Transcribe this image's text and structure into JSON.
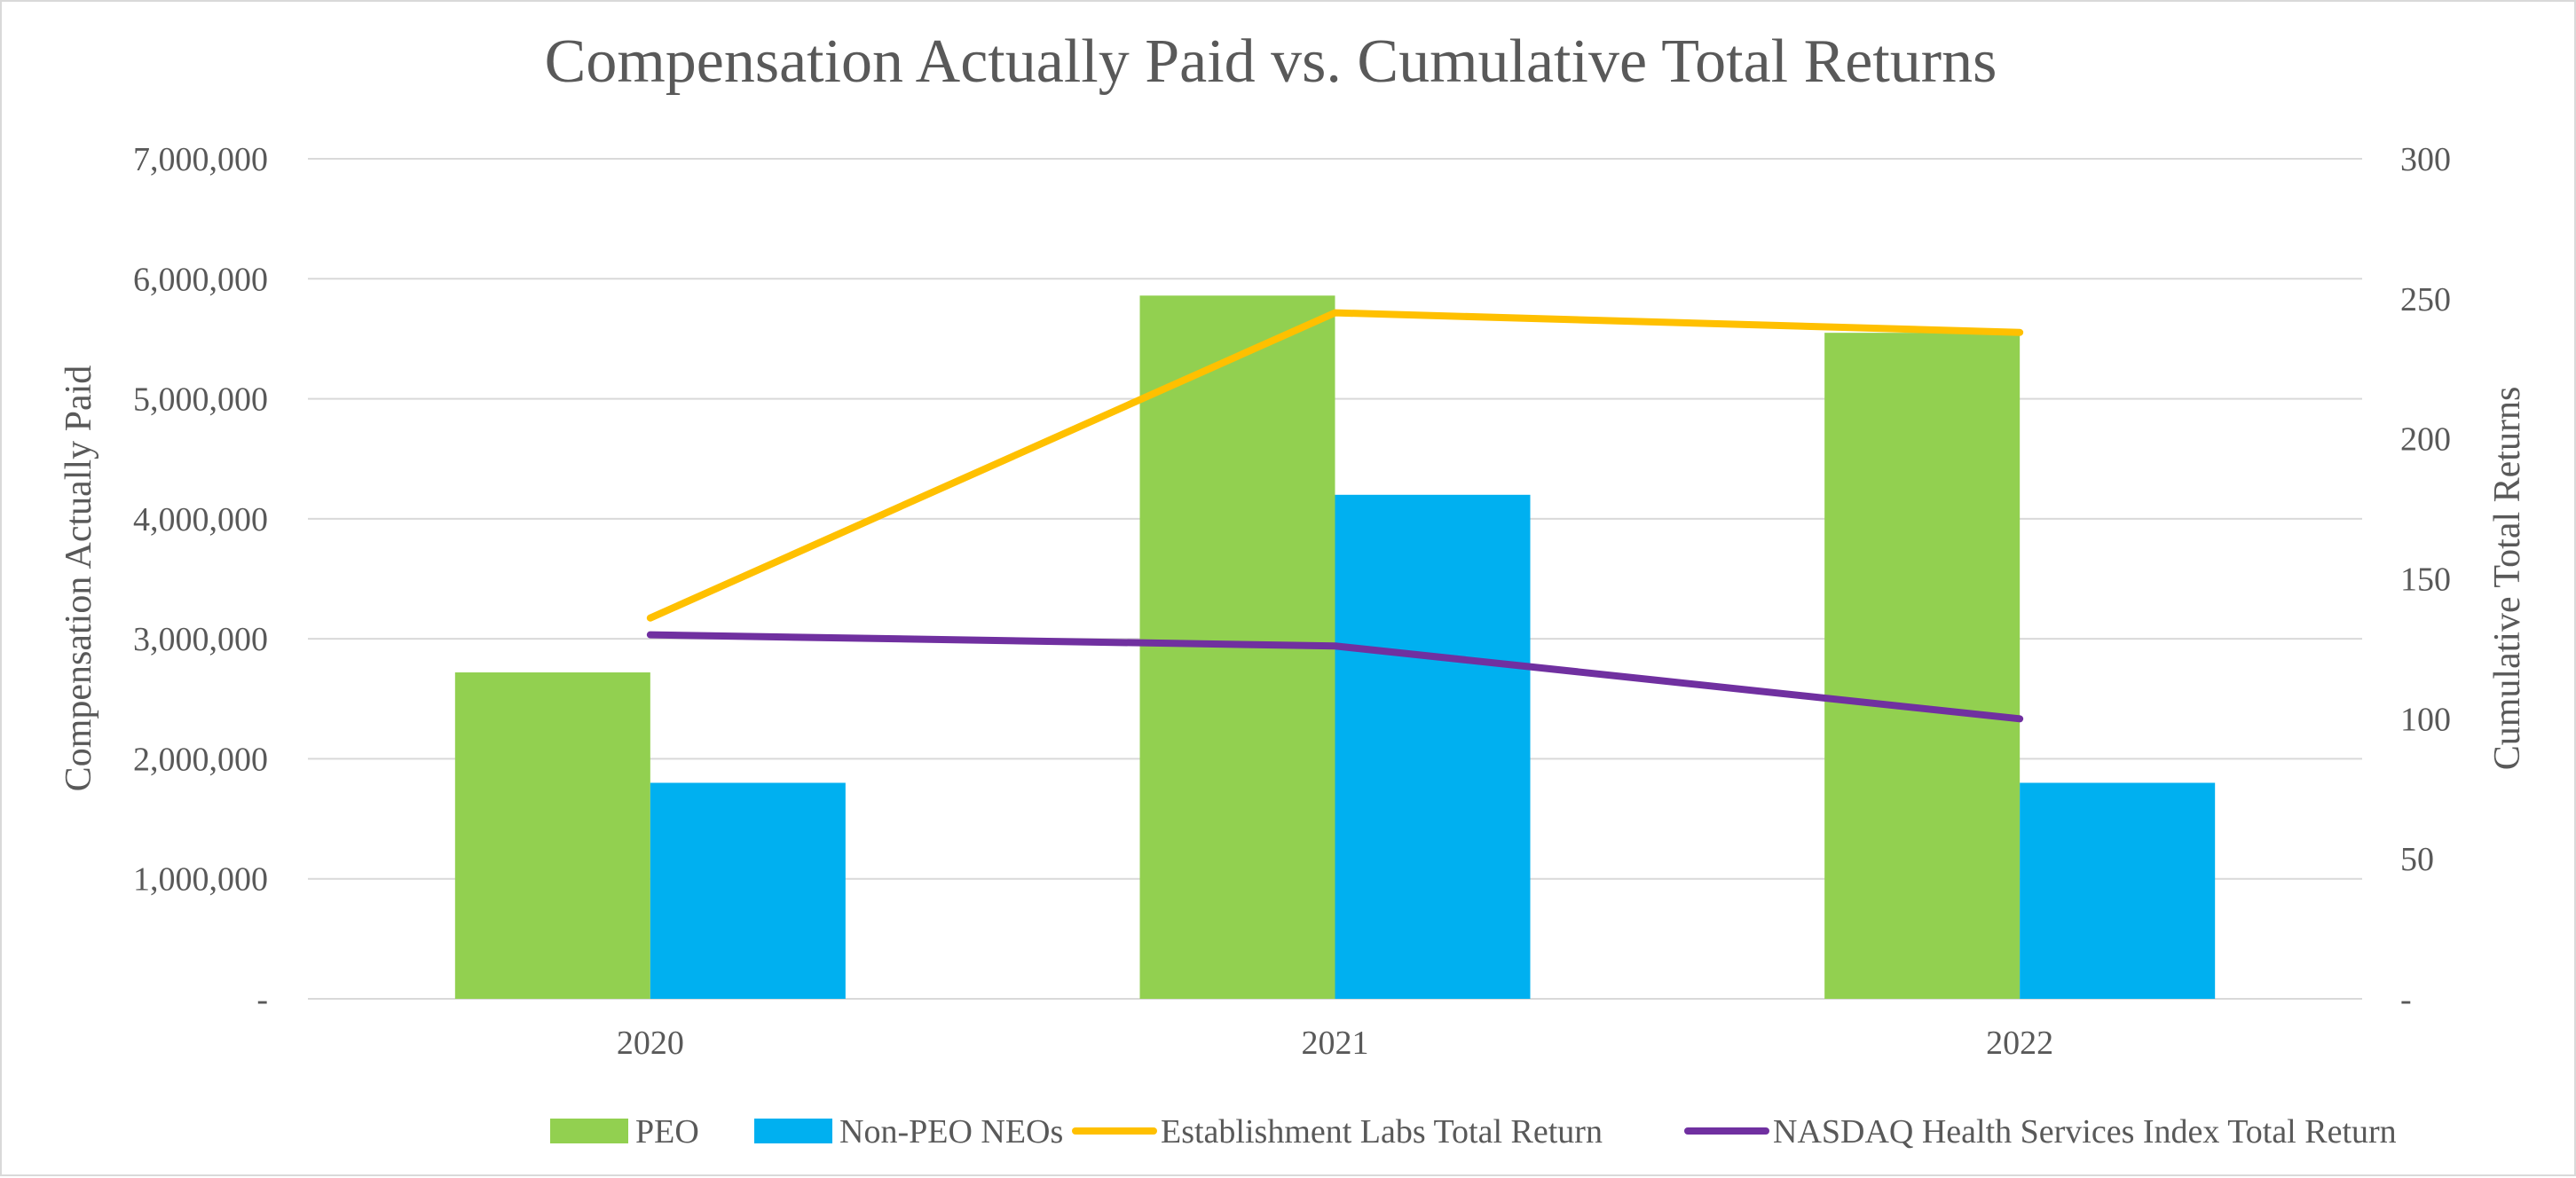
{
  "chart_data": {
    "type": "bar",
    "title": "Compensation Actually Paid vs. Cumulative Total Returns",
    "categories": [
      "2020",
      "2021",
      "2022"
    ],
    "ylabel": "Compensation Actually Paid",
    "y2label": "Cumulative Total Returns",
    "ylim": [
      0,
      7000000
    ],
    "y2lim": [
      0,
      300
    ],
    "y_ticks": [
      0,
      1000000,
      2000000,
      3000000,
      4000000,
      5000000,
      6000000,
      7000000
    ],
    "y_tick_labels": [
      "-",
      "1,000,000",
      "2,000,000",
      "3,000,000",
      "4,000,000",
      "5,000,000",
      "6,000,000",
      "7,000,000"
    ],
    "y2_ticks": [
      0,
      50,
      100,
      150,
      200,
      250,
      300
    ],
    "y2_tick_labels": [
      "-",
      "50",
      "100",
      "150",
      "200",
      "250",
      "300"
    ],
    "grid": true,
    "legend_position": "bottom",
    "series": [
      {
        "name": "PEO",
        "kind": "bar",
        "axis": "left",
        "color": "#92d050",
        "values": [
          2720000,
          5860000,
          5550000
        ]
      },
      {
        "name": "Non-PEO NEOs",
        "kind": "bar",
        "axis": "left",
        "color": "#00b0f0",
        "values": [
          1800000,
          4200000,
          1800000
        ]
      },
      {
        "name": "Establishment Labs Total Return",
        "kind": "line",
        "axis": "right",
        "color": "#ffc000",
        "values": [
          136,
          245,
          238
        ]
      },
      {
        "name": "NASDAQ Health Services Index Total Return",
        "kind": "line",
        "axis": "right",
        "color": "#7030a0",
        "values": [
          130,
          126,
          100
        ]
      }
    ]
  }
}
